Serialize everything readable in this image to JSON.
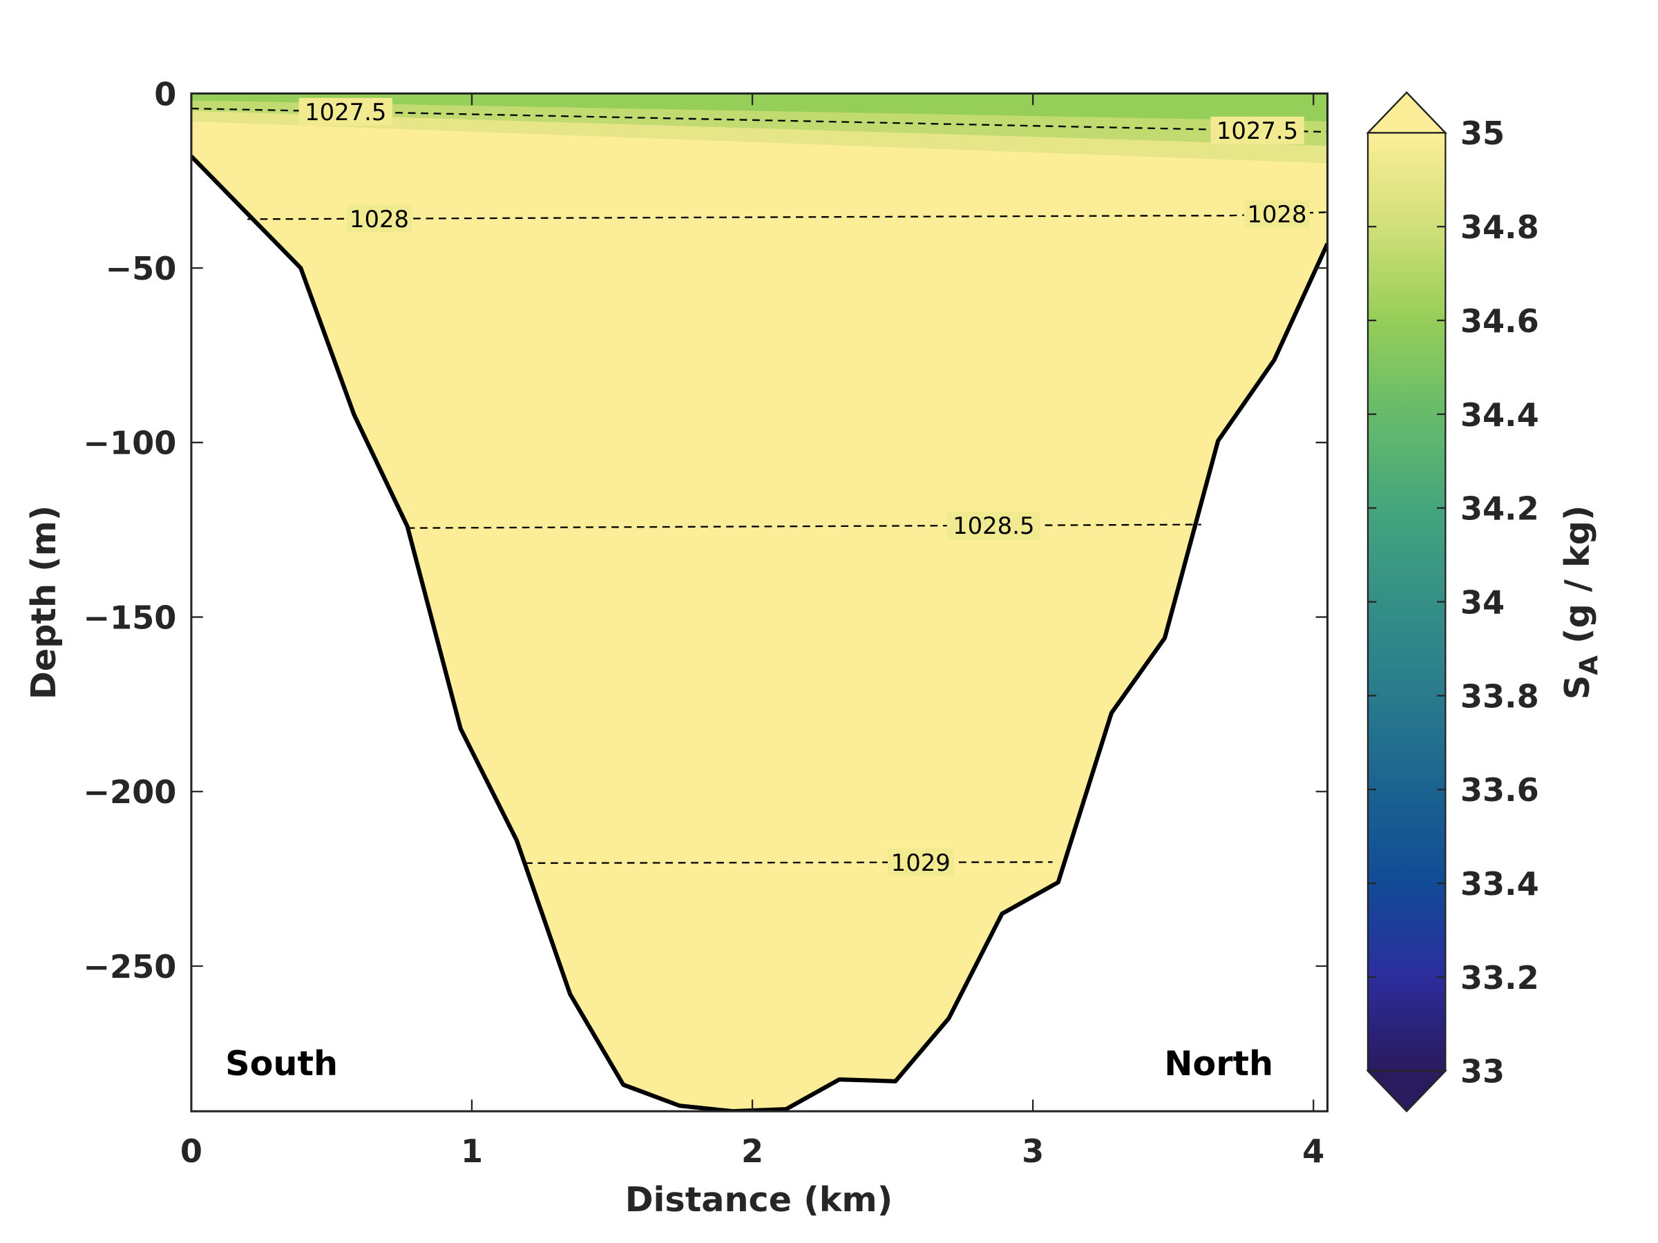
{
  "chart_data": {
    "type": "area",
    "title": "",
    "xlabel": "Distance (km)",
    "ylabel": "Depth (m)",
    "xlim": [
      0,
      4.05
    ],
    "ylim": [
      -291.6,
      0
    ],
    "xticks": [
      0,
      1,
      2,
      3,
      4
    ],
    "xtick_labels": [
      "0",
      "1",
      "2",
      "3",
      "4"
    ],
    "yticks": [
      0,
      -50,
      -100,
      -150,
      -200,
      -250
    ],
    "ytick_labels": [
      "0",
      "−50",
      "−100",
      "−150",
      "−200",
      "−250"
    ],
    "grid": false,
    "annotations": {
      "left": "South",
      "right": "North"
    },
    "bathymetry": {
      "x": [
        0,
        0.39,
        0.58,
        0.77,
        0.96,
        1.16,
        1.35,
        1.54,
        1.74,
        1.93,
        2.12,
        2.31,
        2.51,
        2.7,
        2.89,
        3.09,
        3.28,
        3.47,
        3.66,
        3.86,
        4.05
      ],
      "depth": [
        -18,
        -50,
        -92,
        -124,
        -182,
        -214,
        -258,
        -284,
        -290,
        -291.6,
        -291,
        -282.5,
        -283,
        -265,
        -235,
        -226,
        -177.5,
        -156,
        -99.5,
        -76.4,
        -43
      ]
    },
    "density_contours": [
      {
        "level": "1027.5",
        "x": [
          0,
          4.05
        ],
        "depth": [
          -4.3,
          -11
        ],
        "label_x": [
          0.55,
          3.8
        ]
      },
      {
        "level": "1028",
        "x": [
          0.2,
          3.5,
          3.7,
          4.05
        ],
        "depth": [
          -36,
          -35,
          -35,
          -34
        ],
        "label_x": [
          0.67,
          3.87
        ]
      },
      {
        "level": "1028.5",
        "x": [
          0.77,
          3.6
        ],
        "depth": [
          -124.5,
          -123.5
        ],
        "label_x": [
          2.86
        ]
      },
      {
        "level": "1029",
        "x": [
          1.19,
          3.07
        ],
        "depth": [
          -220.5,
          -220.2
        ],
        "label_x": [
          2.6
        ]
      }
    ],
    "salinity_field": {
      "description_values": "surface fresher layer ~34.6-34.8 g/kg thickening northward; below ~35 g/kg",
      "surface_layers": [
        {
          "value": 34.6,
          "depth_left": -2,
          "depth_right": -8
        },
        {
          "value": 34.75,
          "depth_left": -5,
          "depth_right": -15
        },
        {
          "value": 34.9,
          "depth_left": -8,
          "depth_right": -20
        }
      ],
      "background_value": 35
    },
    "colorbar": {
      "label": "S",
      "label_sub": "A",
      "label_units": " (g / kg)",
      "range": [
        33,
        35
      ],
      "ticks": [
        "33",
        "33.2",
        "33.4",
        "33.6",
        "33.8",
        "34",
        "34.2",
        "34.4",
        "34.6",
        "34.8",
        "35"
      ],
      "colors": [
        "#2a1a5e",
        "#2c2d9d",
        "#124b96",
        "#1b6390",
        "#2a7b8d",
        "#348f86",
        "#45a57d",
        "#66bb6a",
        "#95ce59",
        "#d0df79",
        "#fcee99"
      ]
    }
  }
}
